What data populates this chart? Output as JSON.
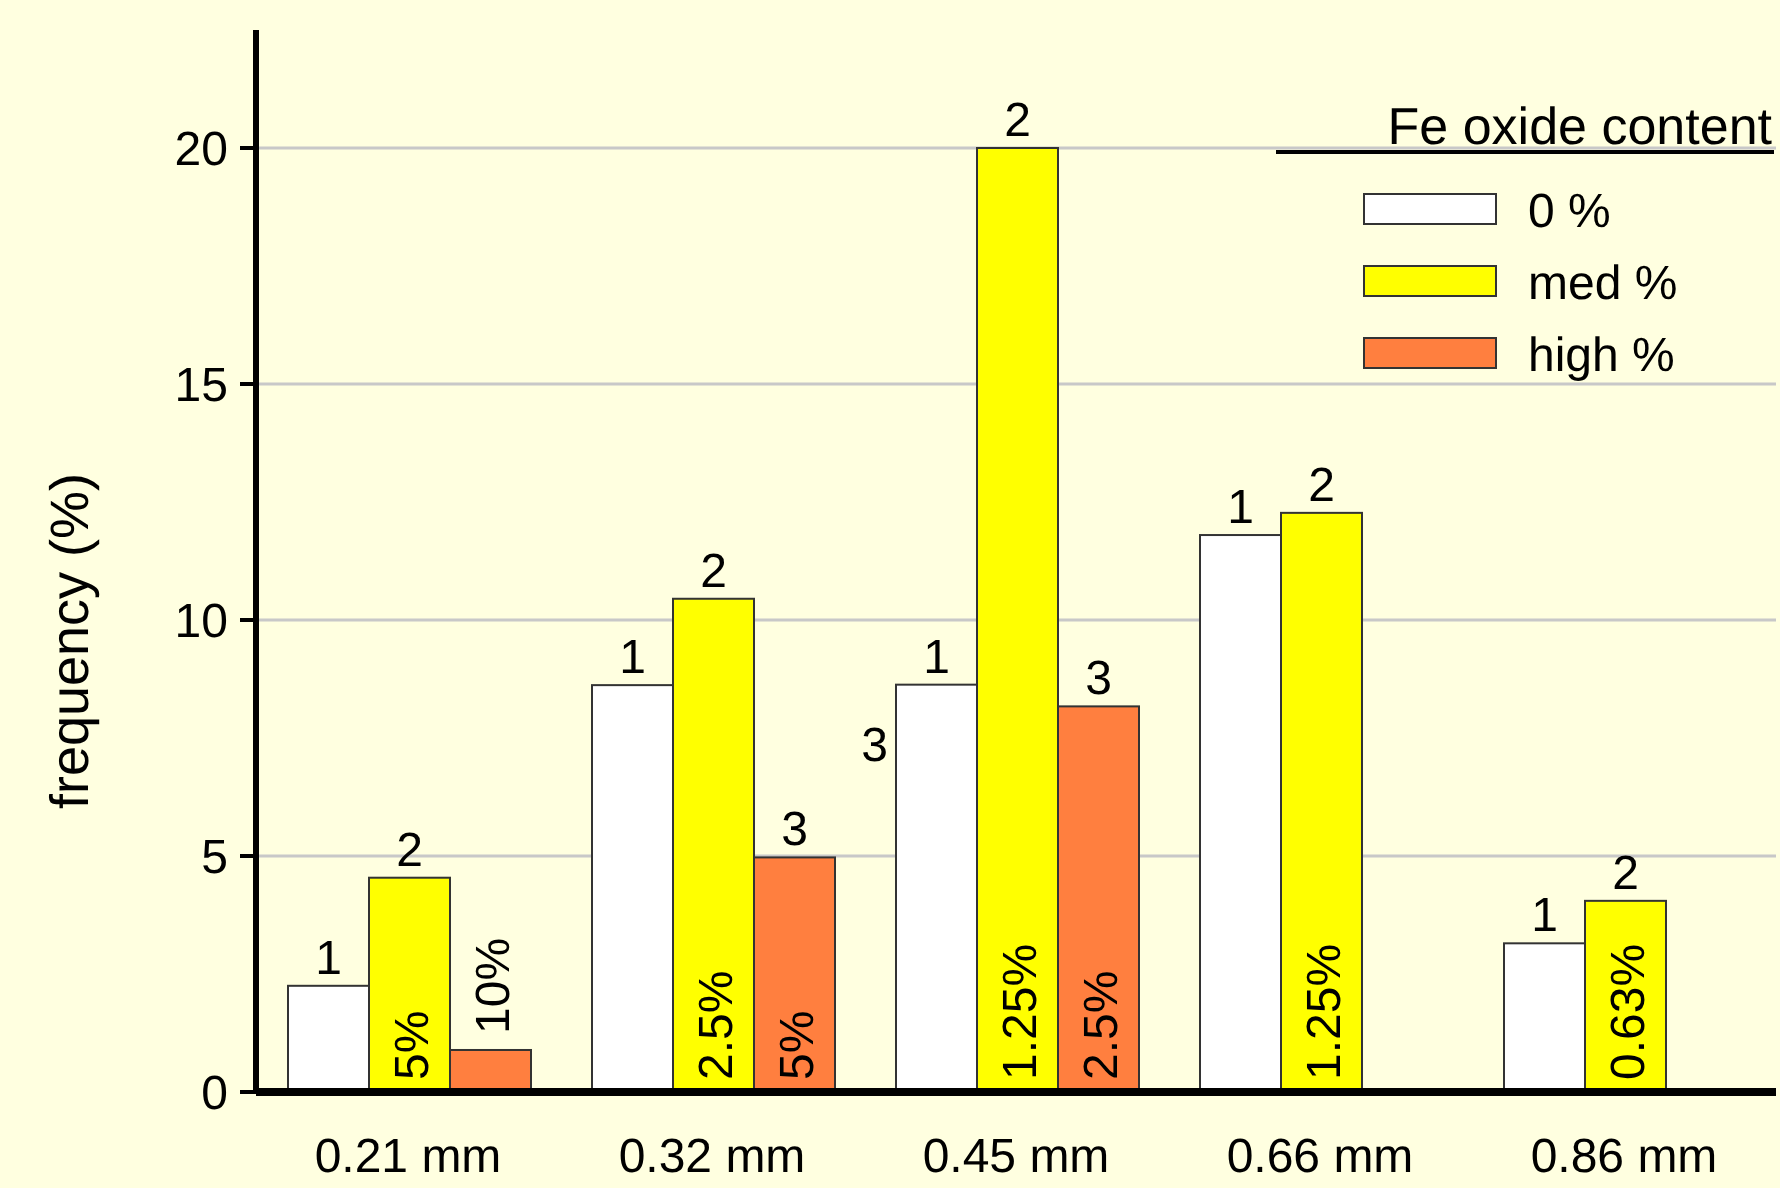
{
  "chart_data": {
    "type": "bar",
    "ylabel": "frequency (%)",
    "legend_title": "Fe oxide content",
    "categories": [
      "0.21 mm",
      "0.32 mm",
      "0.45 mm",
      "0.66 mm",
      "0.86 mm"
    ],
    "series": [
      {
        "name": "0 %",
        "color": "#ffffff",
        "values": [
          2.25,
          8.62,
          8.63,
          11.8,
          3.15
        ]
      },
      {
        "name": "med %",
        "color": "#ffff00",
        "values": [
          4.54,
          10.45,
          20,
          12.27,
          4.05
        ]
      },
      {
        "name": "high %",
        "color": "#ff7f3f",
        "values": [
          0.89,
          4.97,
          8.17,
          null,
          null
        ]
      }
    ],
    "annotations": [
      "1",
      "2",
      "5%",
      "10%",
      "1",
      "2",
      "2.5%",
      "3",
      "5%",
      "3",
      "1",
      "2",
      "1.25%",
      "3",
      "2.5%",
      "1",
      "2",
      "1.25%",
      "1",
      "2",
      "0.63%"
    ],
    "ylim": [
      0,
      22.5
    ],
    "yticks": [
      0,
      5,
      10,
      15,
      20
    ],
    "grid": "y",
    "legend": "top right"
  }
}
